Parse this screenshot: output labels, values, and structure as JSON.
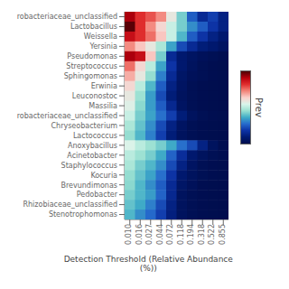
{
  "chart_data": {
    "type": "heatmap",
    "xlabel": "Detection Threshold (Relative Abundance (%))",
    "colorbar_label": "Prev",
    "xticks": [
      "0.010",
      "0.016",
      "0.027",
      "0.044",
      "0.072",
      "0.118",
      "0.194",
      "0.318",
      "0.522",
      "0.855"
    ],
    "yticks": [
      "robacteriaceae_unclassified",
      "Lactobacillus",
      "Weissella",
      "Yersinia",
      "Pseudomonas",
      "Streptococcus",
      "Sphingomonas",
      "Erwinia",
      "Leuconostoc",
      "Massilia",
      "robacteriaceae_unclassified",
      "Chryseobacterium",
      "Lactococcus",
      "Anoxybacillus",
      "Acinetobacter",
      "Staphylococcus",
      "Kocuria",
      "Brevundimonas",
      "Pedobacter",
      "Rhizobiaceae_unclassified",
      "Stenotrophomonas"
    ],
    "values": [
      [
        0.92,
        0.82,
        0.78,
        0.72,
        0.58,
        0.42,
        0.25,
        0.15,
        0.2,
        0.12
      ],
      [
        0.99,
        0.82,
        0.72,
        0.62,
        0.52,
        0.42,
        0.32,
        0.25,
        0.18,
        0.12
      ],
      [
        0.88,
        0.82,
        0.75,
        0.65,
        0.52,
        0.38,
        0.25,
        0.18,
        0.12,
        0.08
      ],
      [
        0.72,
        0.65,
        0.58,
        0.48,
        0.35,
        0.22,
        0.15,
        0.1,
        0.08,
        0.05
      ],
      [
        0.92,
        0.88,
        0.65,
        0.42,
        0.15,
        0.08,
        0.05,
        0.03,
        0.02,
        0.01
      ],
      [
        0.75,
        0.62,
        0.5,
        0.35,
        0.18,
        0.08,
        0.04,
        0.02,
        0.01,
        0.005
      ],
      [
        0.68,
        0.58,
        0.45,
        0.3,
        0.15,
        0.06,
        0.03,
        0.02,
        0.01,
        0.005
      ],
      [
        0.62,
        0.5,
        0.38,
        0.25,
        0.12,
        0.05,
        0.02,
        0.01,
        0.005,
        0.003
      ],
      [
        0.58,
        0.46,
        0.34,
        0.22,
        0.1,
        0.04,
        0.02,
        0.01,
        0.005,
        0.002
      ],
      [
        0.56,
        0.44,
        0.34,
        0.25,
        0.14,
        0.05,
        0.02,
        0.01,
        0.005,
        0.002
      ],
      [
        0.52,
        0.42,
        0.35,
        0.28,
        0.2,
        0.1,
        0.04,
        0.02,
        0.01,
        0.005
      ],
      [
        0.48,
        0.4,
        0.32,
        0.22,
        0.12,
        0.05,
        0.02,
        0.01,
        0.005,
        0.002
      ],
      [
        0.45,
        0.38,
        0.3,
        0.2,
        0.1,
        0.04,
        0.02,
        0.01,
        0.004,
        0.002
      ],
      [
        0.55,
        0.5,
        0.46,
        0.42,
        0.36,
        0.28,
        0.22,
        0.12,
        0.04,
        0.01
      ],
      [
        0.5,
        0.46,
        0.42,
        0.36,
        0.26,
        0.16,
        0.08,
        0.04,
        0.02,
        0.01
      ],
      [
        0.48,
        0.42,
        0.38,
        0.32,
        0.22,
        0.12,
        0.05,
        0.02,
        0.01,
        0.005
      ],
      [
        0.45,
        0.4,
        0.35,
        0.28,
        0.18,
        0.08,
        0.04,
        0.02,
        0.01,
        0.004
      ],
      [
        0.44,
        0.38,
        0.32,
        0.25,
        0.15,
        0.06,
        0.03,
        0.01,
        0.005,
        0.002
      ],
      [
        0.42,
        0.38,
        0.34,
        0.26,
        0.14,
        0.04,
        0.02,
        0.01,
        0.005,
        0.002
      ],
      [
        0.4,
        0.36,
        0.3,
        0.22,
        0.12,
        0.04,
        0.02,
        0.01,
        0.004,
        0.002
      ],
      [
        0.38,
        0.32,
        0.27,
        0.2,
        0.11,
        0.04,
        0.02,
        0.01,
        0.004,
        0.002
      ]
    ],
    "zlim": [
      0.0,
      1.0
    ],
    "colors": [
      "#000d4d",
      "#001a73",
      "#0d33a6",
      "#266bcc",
      "#40adc7",
      "#99e0d1",
      "#d9f5eb",
      "#fad1cc",
      "#f2857a",
      "#e02e2e",
      "#b8000d",
      "#4d0005"
    ]
  }
}
